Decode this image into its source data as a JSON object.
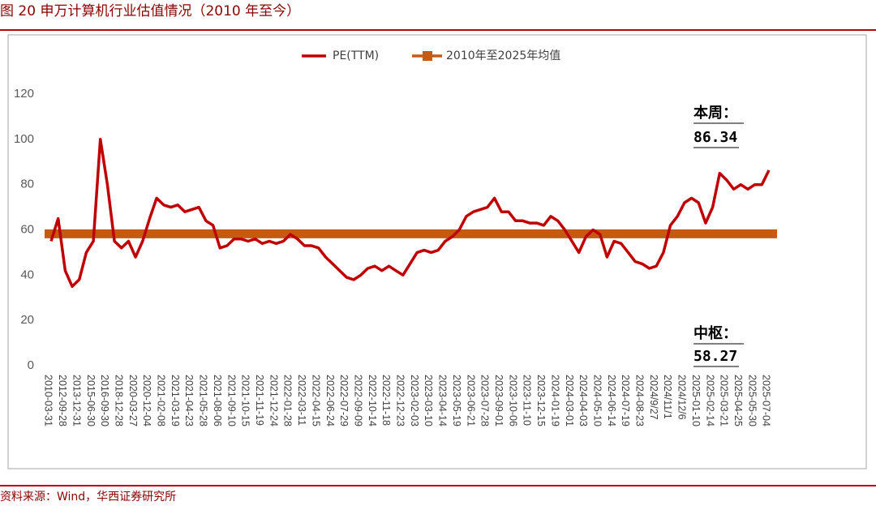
{
  "chart_data": {
    "type": "line",
    "title": "图 20  申万计算机行业估值情况（2010 年至今）",
    "source": "资料来源：Wind，华西证券研究所",
    "categories": [
      "2010-03-31",
      null,
      "2012-09-28",
      null,
      "2013-12-31",
      null,
      "2015-06-30",
      null,
      "2016-09-30",
      null,
      "2018-12-28",
      null,
      "2020-03-27",
      null,
      "2020-12-04",
      null,
      "2021-02-08",
      null,
      "2021-03-19",
      null,
      "2021-04-23",
      null,
      "2021-05-28",
      null,
      "2021-08-06",
      null,
      "2021-09-10",
      null,
      "2021-10-15",
      null,
      "2021-11-19",
      null,
      "2021-12-24",
      null,
      "2022-01-28",
      null,
      "2022-03-11",
      null,
      "2022-04-15",
      null,
      "2022-06-24",
      null,
      "2022-07-29",
      null,
      "2022-09-09",
      null,
      "2022-10-14",
      null,
      "2022-11-18",
      null,
      "2022-12-23",
      null,
      "2023-02-03",
      null,
      "2023-03-10",
      null,
      "2023-04-14",
      null,
      "2023-05-19",
      null,
      "2023-06-21",
      null,
      "2023-07-28",
      null,
      "2023-09-01",
      null,
      "2023-10-06",
      null,
      "2023-11-10",
      null,
      "2023-12-15",
      null,
      "2024-01-19",
      null,
      "2024-03-01",
      null,
      "2024-04-03",
      null,
      "2024-05-10",
      null,
      "2024-06-14",
      null,
      "2024-07-19",
      null,
      "2024-08-23",
      null,
      "2024/9/27",
      null,
      "2024/11/1",
      null,
      "2024/12/6",
      null,
      "2025-01-10",
      null,
      "2025-02-14",
      null,
      "2025-03-21",
      null,
      "2025-04-25",
      null,
      "2025-05-30",
      null,
      "2025-07-04"
    ],
    "series": [
      {
        "name": "PE(TTM)",
        "color": "#c00000",
        "values": [
          55,
          65,
          42,
          35,
          38,
          50,
          55,
          100,
          80,
          55,
          52,
          55,
          48,
          55,
          65,
          74,
          71,
          70,
          71,
          68,
          69,
          70,
          64,
          62,
          52,
          53,
          56,
          56,
          55,
          56,
          54,
          55,
          54,
          55,
          58,
          56,
          53,
          53,
          52,
          48,
          45,
          42,
          39,
          38,
          40,
          43,
          44,
          42,
          44,
          42,
          40,
          45,
          50,
          51,
          50,
          51,
          55,
          57,
          60,
          66,
          68,
          69,
          70,
          74,
          68,
          68,
          64,
          64,
          63,
          63,
          62,
          66,
          64,
          60,
          55,
          50,
          57,
          60,
          58,
          48,
          55,
          54,
          50,
          46,
          45,
          43,
          44,
          50,
          62,
          66,
          72,
          74,
          72,
          63,
          70,
          85,
          82,
          78,
          80,
          78,
          80,
          80,
          86.34
        ]
      }
    ],
    "mean_line": {
      "name": "2010年至2025年均值",
      "value": 58.27,
      "color": "#c55a11"
    },
    "annotations": [
      "本周：",
      "中枢："
    ],
    "ylim": [
      0,
      120
    ],
    "yticks": [
      0,
      20,
      40,
      60,
      80,
      100,
      120
    ],
    "grid": false,
    "legend": "top"
  }
}
